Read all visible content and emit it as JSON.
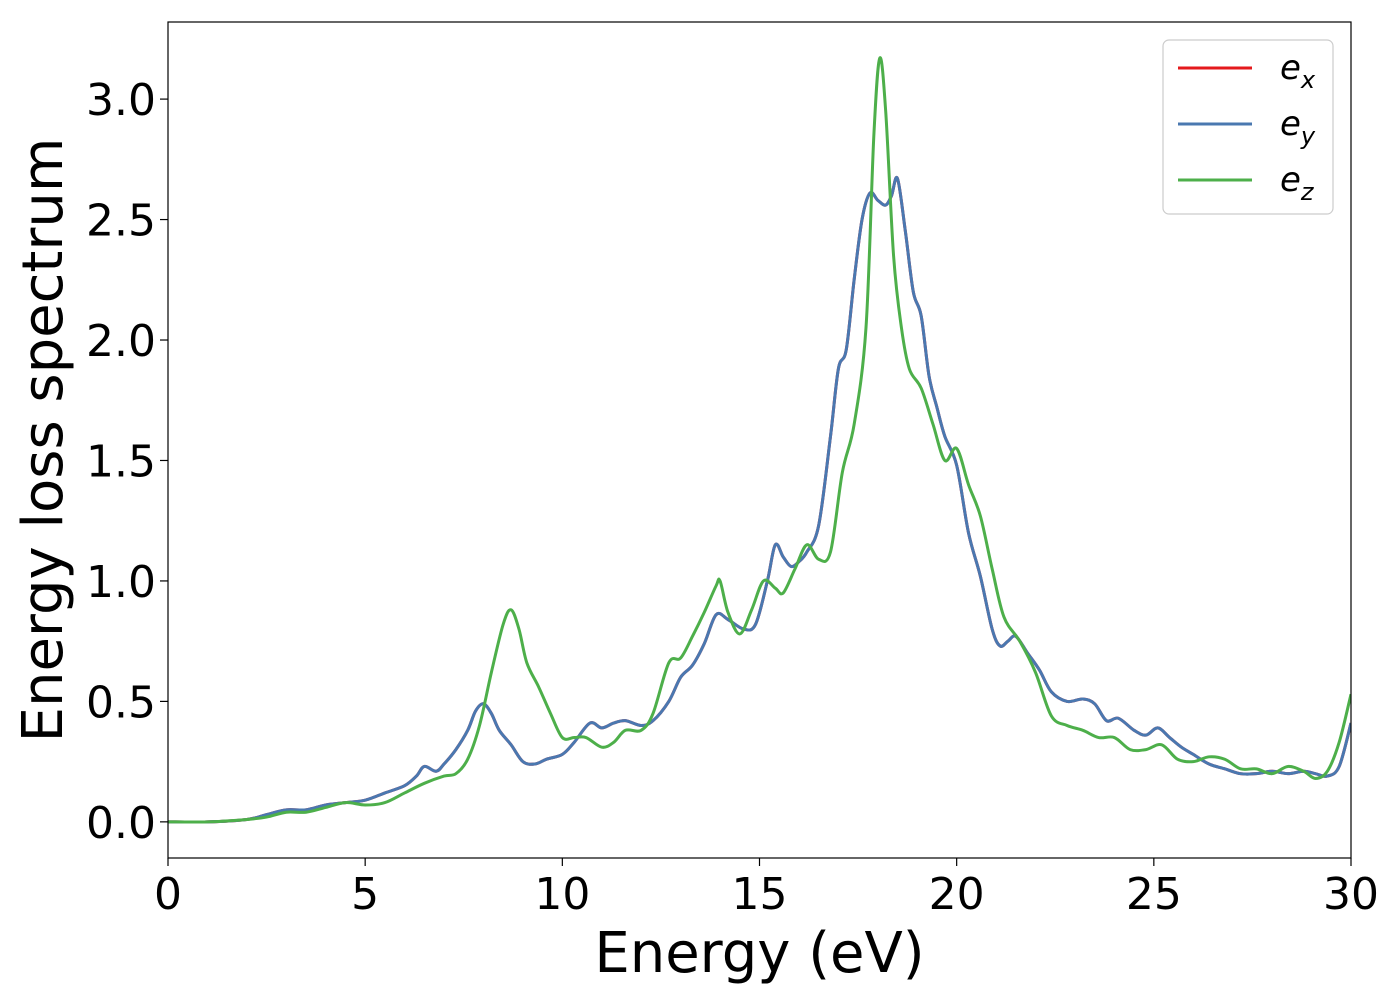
{
  "chart_data": {
    "type": "line",
    "xlabel": "Energy (eV)",
    "ylabel": "Energy loss spectrum",
    "xlim": [
      0,
      30
    ],
    "ylim": [
      -0.15,
      3.32
    ],
    "xticks": [
      0,
      5,
      10,
      15,
      20,
      25,
      30
    ],
    "xtick_labels": [
      "0",
      "5",
      "10",
      "15",
      "20",
      "25",
      "30"
    ],
    "yticks": [
      0.0,
      0.5,
      1.0,
      1.5,
      2.0,
      2.5,
      3.0
    ],
    "ytick_labels": [
      "0.0",
      "0.5",
      "1.0",
      "1.5",
      "2.0",
      "2.5",
      "3.0"
    ],
    "grid": false,
    "legend_position": "top-right",
    "series": [
      {
        "name": "e_x",
        "legend_base": "e",
        "legend_sub": "x",
        "color": "#e41a1c",
        "x": [
          0,
          1,
          2,
          2.5,
          3,
          3.5,
          4,
          4.5,
          5,
          5.5,
          6,
          6.3,
          6.5,
          6.8,
          7,
          7.3,
          7.6,
          7.8,
          8,
          8.2,
          8.4,
          8.7,
          9,
          9.3,
          9.6,
          10,
          10.3,
          10.7,
          11,
          11.3,
          11.6,
          12,
          12.3,
          12.7,
          13,
          13.3,
          13.6,
          13.9,
          14.2,
          14.6,
          14.9,
          15.2,
          15.4,
          15.6,
          15.8,
          16,
          16.2,
          16.5,
          16.8,
          17,
          17.2,
          17.4,
          17.6,
          17.8,
          18,
          18.2,
          18.35,
          18.5,
          18.7,
          18.9,
          19.1,
          19.3,
          19.5,
          19.7,
          20,
          20.3,
          20.6,
          20.9,
          21.1,
          21.3,
          21.5,
          21.8,
          22.1,
          22.4,
          22.8,
          23.2,
          23.5,
          23.8,
          24.1,
          24.5,
          24.8,
          25.1,
          25.4,
          25.7,
          26,
          26.4,
          26.8,
          27.2,
          27.6,
          28,
          28.4,
          28.8,
          29.1,
          29.4,
          29.7,
          30
        ],
        "y": [
          0,
          0,
          0.01,
          0.03,
          0.05,
          0.05,
          0.07,
          0.08,
          0.09,
          0.12,
          0.15,
          0.19,
          0.23,
          0.21,
          0.24,
          0.3,
          0.38,
          0.46,
          0.49,
          0.45,
          0.38,
          0.32,
          0.25,
          0.24,
          0.26,
          0.28,
          0.33,
          0.41,
          0.39,
          0.41,
          0.42,
          0.4,
          0.42,
          0.5,
          0.6,
          0.65,
          0.74,
          0.86,
          0.84,
          0.8,
          0.82,
          1,
          1.15,
          1.1,
          1.06,
          1.08,
          1.12,
          1.23,
          1.6,
          1.88,
          1.96,
          2.25,
          2.5,
          2.61,
          2.58,
          2.56,
          2.6,
          2.67,
          2.45,
          2.2,
          2.1,
          1.85,
          1.72,
          1.6,
          1.48,
          1.2,
          1.02,
          0.8,
          0.73,
          0.75,
          0.77,
          0.7,
          0.63,
          0.54,
          0.5,
          0.51,
          0.49,
          0.42,
          0.43,
          0.38,
          0.36,
          0.39,
          0.35,
          0.31,
          0.28,
          0.24,
          0.22,
          0.2,
          0.2,
          0.21,
          0.2,
          0.21,
          0.2,
          0.19,
          0.23,
          0.41
        ]
      },
      {
        "name": "e_y",
        "legend_base": "e",
        "legend_sub": "y",
        "color": "#4a78b0",
        "x": [
          0,
          1,
          2,
          2.5,
          3,
          3.5,
          4,
          4.5,
          5,
          5.5,
          6,
          6.3,
          6.5,
          6.8,
          7,
          7.3,
          7.6,
          7.8,
          8,
          8.2,
          8.4,
          8.7,
          9,
          9.3,
          9.6,
          10,
          10.3,
          10.7,
          11,
          11.3,
          11.6,
          12,
          12.3,
          12.7,
          13,
          13.3,
          13.6,
          13.9,
          14.2,
          14.6,
          14.9,
          15.2,
          15.4,
          15.6,
          15.8,
          16,
          16.2,
          16.5,
          16.8,
          17,
          17.2,
          17.4,
          17.6,
          17.8,
          18,
          18.2,
          18.35,
          18.5,
          18.7,
          18.9,
          19.1,
          19.3,
          19.5,
          19.7,
          20,
          20.3,
          20.6,
          20.9,
          21.1,
          21.3,
          21.5,
          21.8,
          22.1,
          22.4,
          22.8,
          23.2,
          23.5,
          23.8,
          24.1,
          24.5,
          24.8,
          25.1,
          25.4,
          25.7,
          26,
          26.4,
          26.8,
          27.2,
          27.6,
          28,
          28.4,
          28.8,
          29.1,
          29.4,
          29.7,
          30
        ],
        "y": [
          0,
          0,
          0.01,
          0.03,
          0.05,
          0.05,
          0.07,
          0.08,
          0.09,
          0.12,
          0.15,
          0.19,
          0.23,
          0.21,
          0.24,
          0.3,
          0.38,
          0.46,
          0.49,
          0.45,
          0.38,
          0.32,
          0.25,
          0.24,
          0.26,
          0.28,
          0.33,
          0.41,
          0.39,
          0.41,
          0.42,
          0.4,
          0.42,
          0.5,
          0.6,
          0.65,
          0.74,
          0.86,
          0.84,
          0.8,
          0.82,
          1,
          1.15,
          1.1,
          1.06,
          1.08,
          1.12,
          1.23,
          1.6,
          1.88,
          1.96,
          2.25,
          2.5,
          2.61,
          2.58,
          2.56,
          2.6,
          2.67,
          2.45,
          2.2,
          2.1,
          1.85,
          1.72,
          1.6,
          1.48,
          1.2,
          1.02,
          0.8,
          0.73,
          0.75,
          0.77,
          0.7,
          0.63,
          0.54,
          0.5,
          0.51,
          0.49,
          0.42,
          0.43,
          0.38,
          0.36,
          0.39,
          0.35,
          0.31,
          0.28,
          0.24,
          0.22,
          0.2,
          0.2,
          0.21,
          0.2,
          0.21,
          0.2,
          0.19,
          0.23,
          0.41
        ]
      },
      {
        "name": "e_z",
        "legend_base": "e",
        "legend_sub": "z",
        "color": "#4daf4a",
        "x": [
          0,
          1,
          2,
          2.5,
          3,
          3.5,
          4,
          4.5,
          5,
          5.5,
          6,
          6.5,
          7,
          7.3,
          7.6,
          7.9,
          8.2,
          8.5,
          8.7,
          8.9,
          9.1,
          9.4,
          9.7,
          10,
          10.3,
          10.6,
          11,
          11.3,
          11.6,
          12,
          12.3,
          12.7,
          13,
          13.3,
          13.6,
          13.9,
          14,
          14.2,
          14.5,
          14.8,
          15.1,
          15.4,
          15.6,
          15.9,
          16.2,
          16.5,
          16.8,
          17.1,
          17.4,
          17.7,
          17.9,
          18.05,
          18.2,
          18.4,
          18.6,
          18.8,
          19.1,
          19.4,
          19.7,
          20,
          20.3,
          20.6,
          20.9,
          21.2,
          21.6,
          22,
          22.4,
          22.8,
          23.2,
          23.6,
          24,
          24.4,
          24.8,
          25.2,
          25.6,
          26,
          26.4,
          26.8,
          27.2,
          27.6,
          28,
          28.4,
          28.8,
          29.1,
          29.4,
          29.7,
          30
        ],
        "y": [
          0,
          0,
          0.01,
          0.02,
          0.04,
          0.04,
          0.06,
          0.08,
          0.07,
          0.08,
          0.12,
          0.16,
          0.19,
          0.2,
          0.26,
          0.4,
          0.62,
          0.82,
          0.88,
          0.8,
          0.66,
          0.56,
          0.45,
          0.35,
          0.35,
          0.35,
          0.31,
          0.33,
          0.38,
          0.38,
          0.45,
          0.66,
          0.68,
          0.77,
          0.87,
          0.98,
          1,
          0.87,
          0.78,
          0.88,
          1,
          0.97,
          0.95,
          1.05,
          1.15,
          1.09,
          1.12,
          1.45,
          1.65,
          2.05,
          2.85,
          3.17,
          2.95,
          2.35,
          2.05,
          1.88,
          1.8,
          1.65,
          1.5,
          1.55,
          1.4,
          1.27,
          1.05,
          0.85,
          0.75,
          0.62,
          0.44,
          0.4,
          0.38,
          0.35,
          0.35,
          0.3,
          0.3,
          0.32,
          0.26,
          0.25,
          0.27,
          0.26,
          0.22,
          0.22,
          0.2,
          0.23,
          0.21,
          0.18,
          0.21,
          0.33,
          0.53
        ]
      }
    ]
  }
}
